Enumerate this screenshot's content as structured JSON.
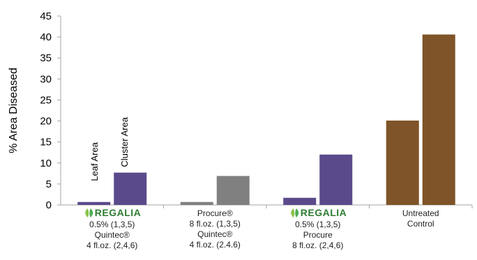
{
  "chart_data": {
    "type": "bar",
    "ylabel": "% Area Diseased",
    "ylim": [
      0,
      45
    ],
    "yticks": [
      0,
      5,
      10,
      15,
      20,
      25,
      30,
      35,
      40,
      45
    ],
    "grid": false,
    "bar_annotations": [
      "Leaf Area",
      "Cluster Area"
    ],
    "categories": [
      {
        "logo": "REGALIA",
        "lines": [
          "0.5% (1,3,5)",
          "Quintec®",
          "4 fl.oz. (2,4,6)"
        ],
        "colors": [
          "#5b4a8b",
          "#5b4a8b"
        ]
      },
      {
        "logo": "",
        "lines": [
          "Procure®",
          "8 fl.oz. (1,3,5)",
          "Quintec®",
          "4 fl.oz. (2.4.6)"
        ],
        "colors": [
          "#808080",
          "#808080"
        ]
      },
      {
        "logo": "REGALIA",
        "lines": [
          "0.5% (1,3,5)",
          "Procure",
          "8 fl.oz. (2,4,6)"
        ],
        "colors": [
          "#5b4a8b",
          "#5b4a8b"
        ]
      },
      {
        "logo": "",
        "lines": [
          "Untreated",
          "Control"
        ],
        "colors": [
          "#7f5428",
          "#7f5428"
        ]
      }
    ],
    "series": [
      {
        "name": "Leaf Area",
        "values": [
          0.7,
          0.7,
          1.7,
          20.1
        ]
      },
      {
        "name": "Cluster Area",
        "values": [
          7.7,
          6.9,
          12.0,
          40.6
        ]
      }
    ]
  }
}
